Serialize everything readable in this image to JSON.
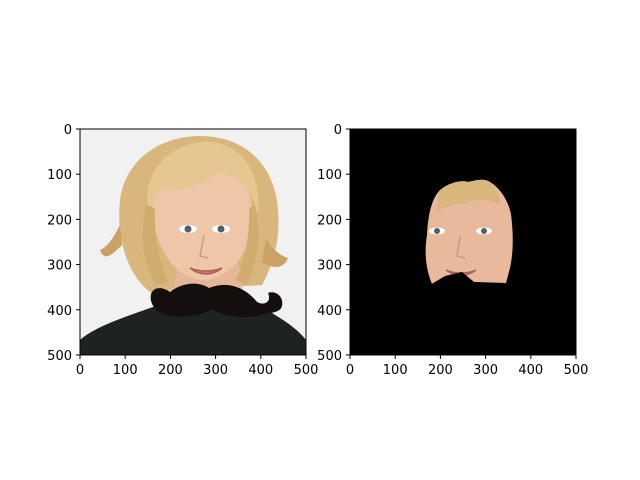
{
  "chart_data": [
    {
      "type": "image",
      "panel": "left",
      "content": "portrait photo with a drawn-on black mustache",
      "xlim": [
        0,
        500
      ],
      "ylim": [
        500,
        0
      ],
      "xticks": [
        0,
        100,
        200,
        300,
        400,
        500
      ],
      "yticks": [
        0,
        100,
        200,
        300,
        400,
        500
      ],
      "xtick_labels": [
        "0",
        "100",
        "200",
        "300",
        "400",
        "500"
      ],
      "ytick_labels": [
        "0",
        "100",
        "200",
        "300",
        "400",
        "500"
      ]
    },
    {
      "type": "image",
      "panel": "right",
      "content": "masked face region on black background",
      "xlim": [
        0,
        500
      ],
      "ylim": [
        500,
        0
      ],
      "xticks": [
        0,
        100,
        200,
        300,
        400,
        500
      ],
      "yticks": [
        0,
        100,
        200,
        300,
        400,
        500
      ],
      "xtick_labels": [
        "0",
        "100",
        "200",
        "300",
        "400",
        "500"
      ],
      "ytick_labels": [
        "0",
        "100",
        "200",
        "300",
        "400",
        "500"
      ]
    }
  ],
  "colors": {
    "left_background": "#f2f1f1",
    "hair": "#e0c089",
    "hair_shadow": "#b58f52",
    "skin": "#efc7a8",
    "sweater": "#1e2223",
    "mustache": "#140e0e",
    "mask": "#000000",
    "eyes": "#4f5f6e",
    "lips": "#c97a72"
  }
}
